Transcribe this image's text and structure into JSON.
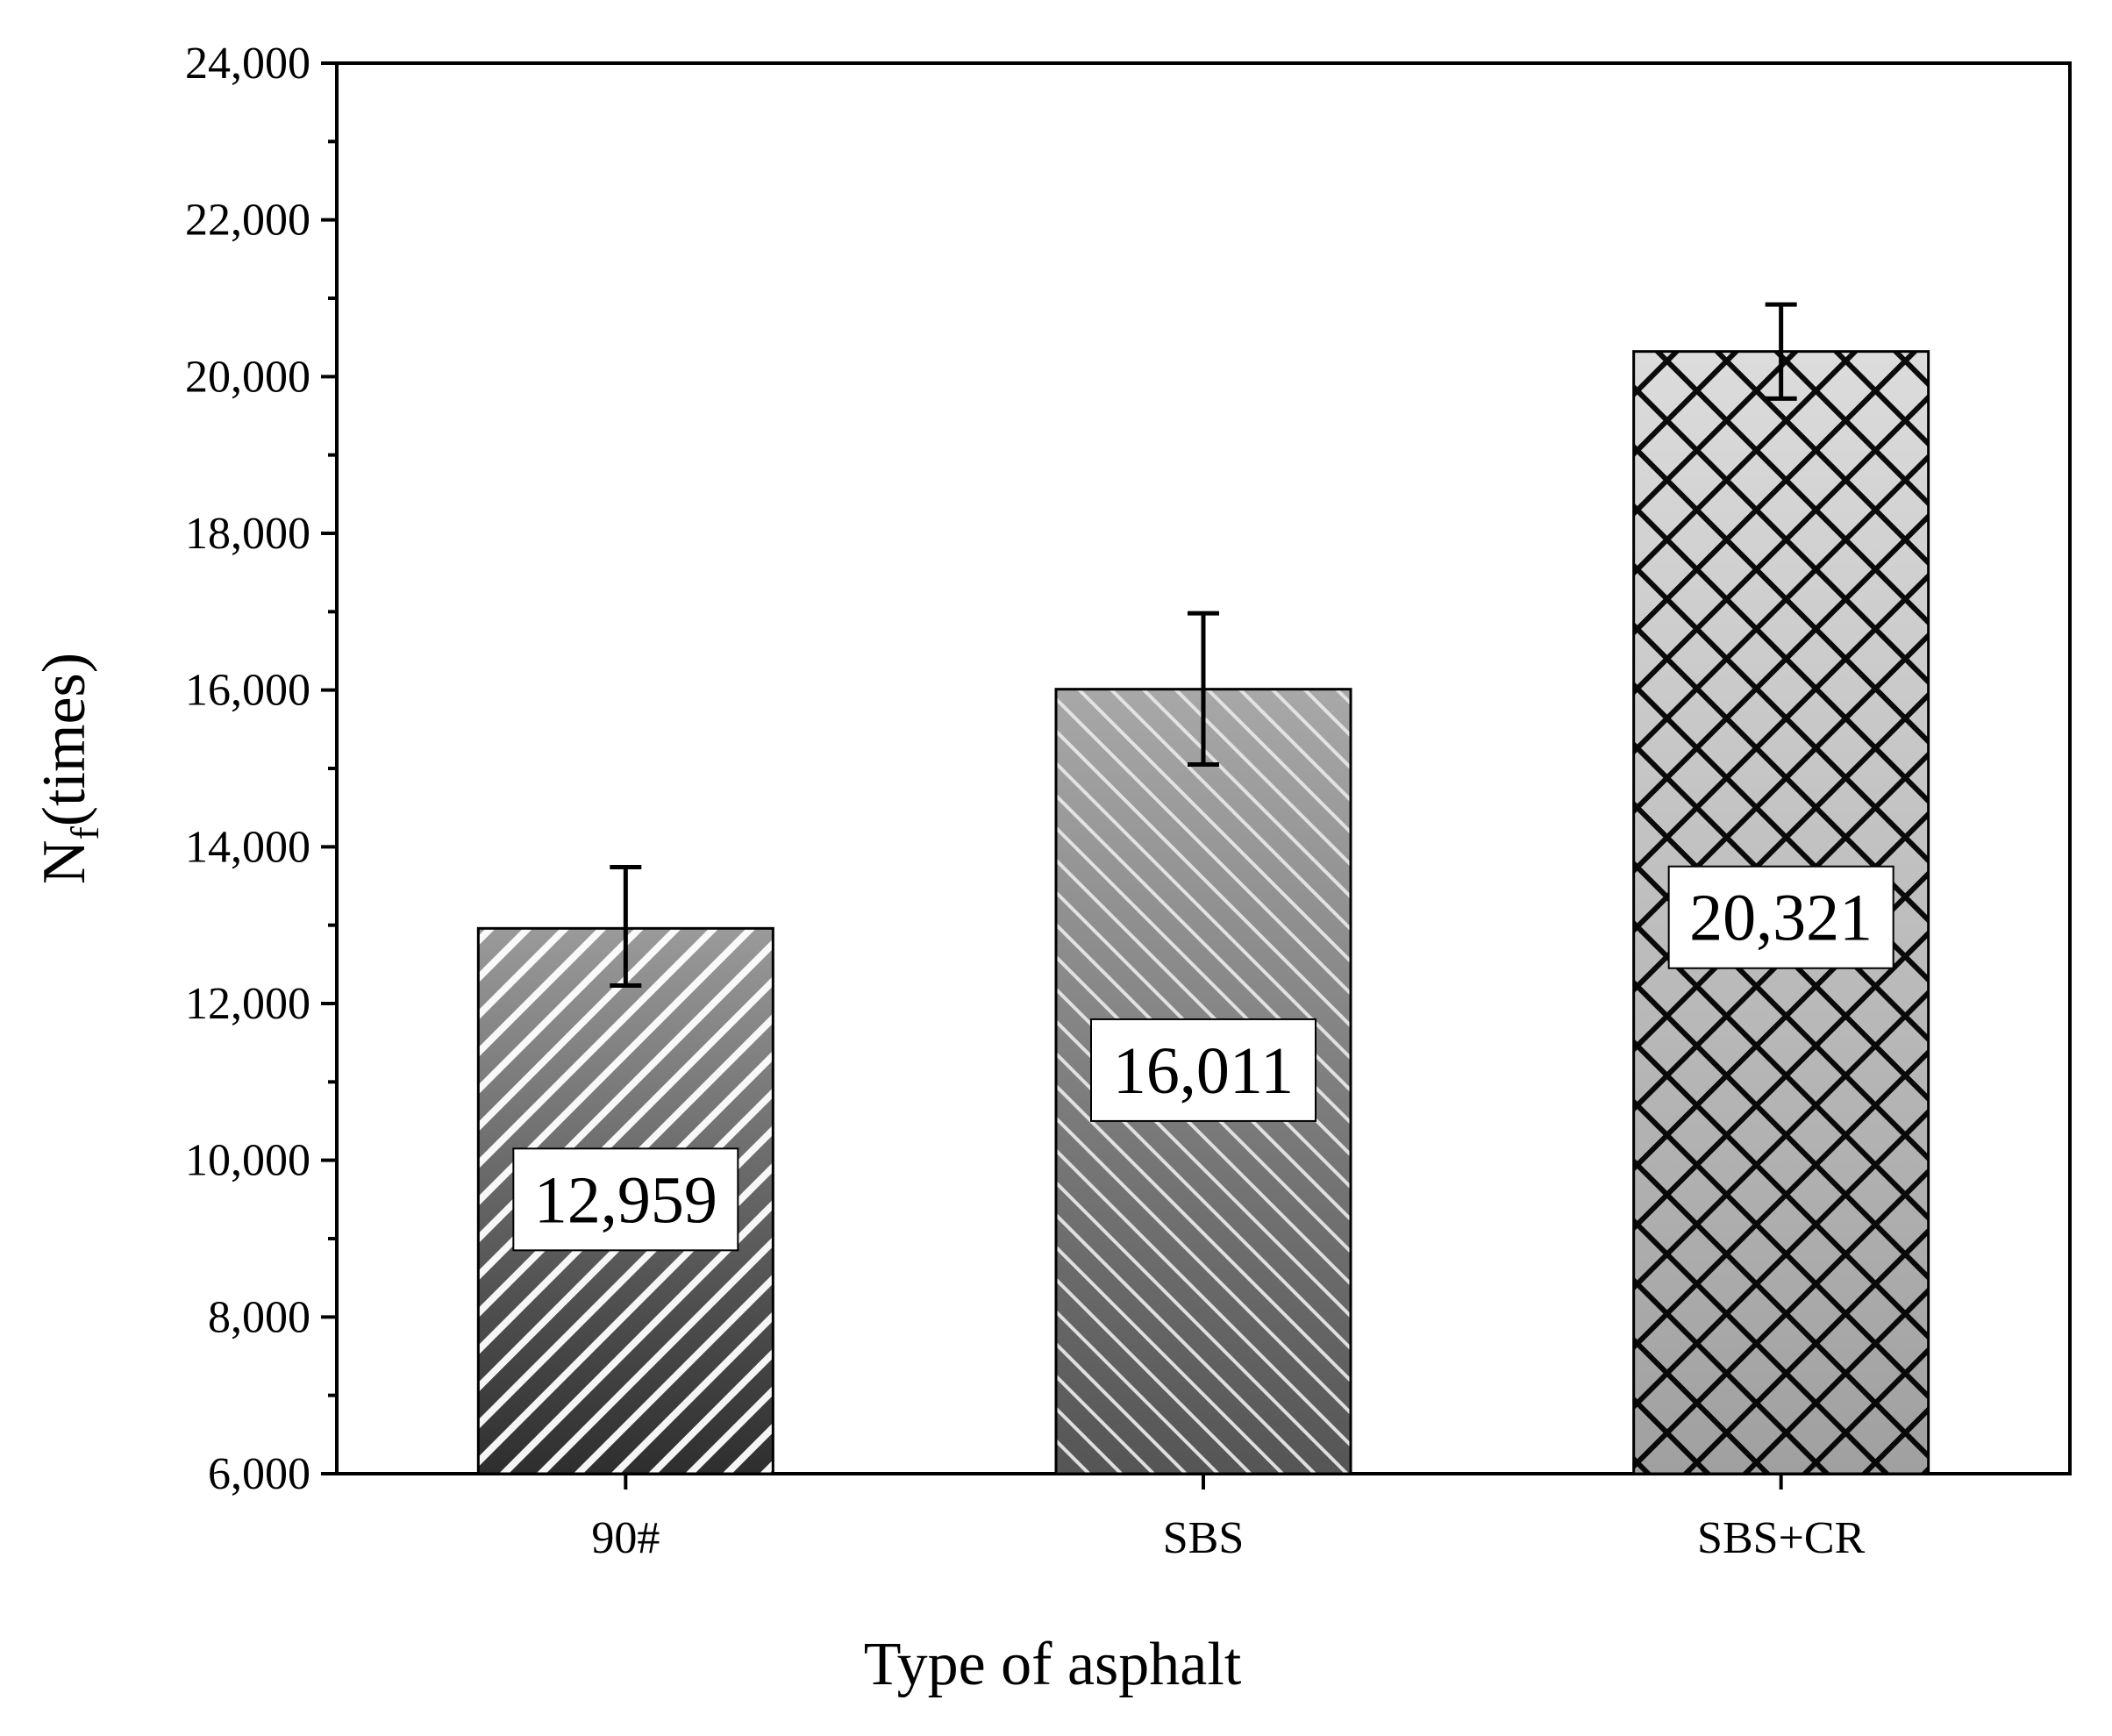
{
  "chart_data": {
    "type": "bar",
    "title": "",
    "xlabel": "Type of asphalt",
    "ylabel_main": "N",
    "ylabel_sub": "f",
    "ylabel_suffix": "(times)",
    "categories": [
      "90#",
      "SBS",
      "SBS+CR"
    ],
    "values": [
      12959,
      16011,
      20321
    ],
    "value_labels": [
      "12,959",
      "16,011",
      "20,321"
    ],
    "errors": [
      {
        "low": 12230,
        "high": 13740
      },
      {
        "low": 15050,
        "high": 16980
      },
      {
        "low": 19720,
        "high": 20920
      }
    ],
    "ylim": [
      6000,
      24000
    ],
    "yticks": [
      6000,
      8000,
      10000,
      12000,
      14000,
      16000,
      18000,
      20000,
      22000,
      24000
    ],
    "ytick_labels": [
      "6,000",
      "8,000",
      "10,000",
      "12,000",
      "14,000",
      "16,000",
      "18,000",
      "20,000",
      "22,000",
      "24,000"
    ],
    "grid": false,
    "bar_colors": [
      "#3a3a3a",
      "#707070",
      "#bdbdbd"
    ],
    "hatch_colors": [
      "#ffffff",
      "#e6e6e6",
      "#000000"
    ]
  }
}
